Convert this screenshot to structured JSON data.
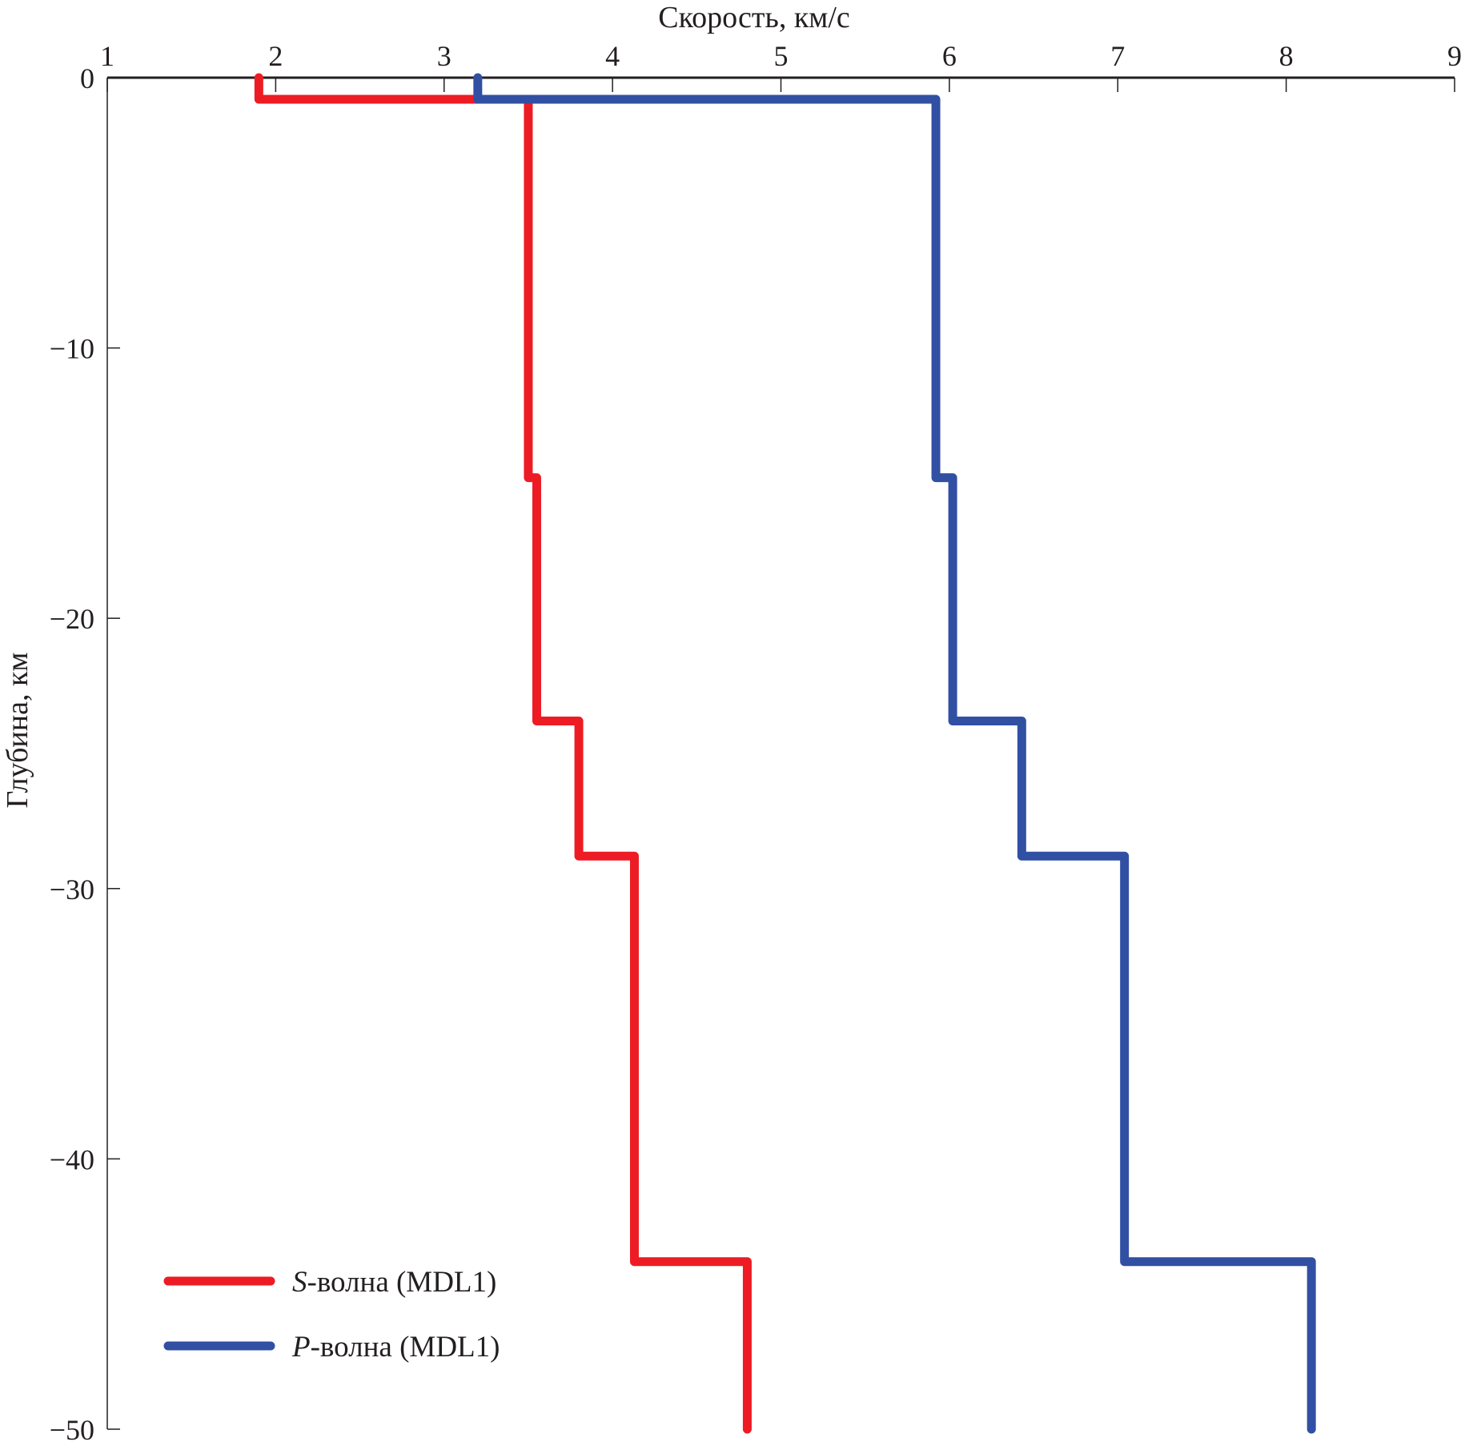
{
  "chart_data": {
    "type": "line",
    "xlabel": "Скорость, км/с",
    "ylabel": "Глубина, км",
    "xlim": [
      1,
      9
    ],
    "ylim": [
      -50,
      0
    ],
    "x_axis_position": "top",
    "xticks": [
      "1",
      "2",
      "3",
      "4",
      "5",
      "6",
      "7",
      "8",
      "9"
    ],
    "yticks": [
      "0",
      "−10",
      "−20",
      "−30",
      "−40",
      "−50"
    ],
    "ytick_values": [
      0,
      -10,
      -20,
      -30,
      -40,
      -50
    ],
    "grid": false,
    "legend_position": "bottom-left",
    "series": [
      {
        "name": "S-волна (MDL1)",
        "label_italic": "S",
        "label_rest": "-волна (MDL1)",
        "color": "#ed1c24",
        "layers": [
          {
            "velocity": 1.9,
            "top": 0,
            "bottom": -0.8
          },
          {
            "velocity": 3.5,
            "top": -0.8,
            "bottom": -14.8
          },
          {
            "velocity": 3.55,
            "top": -14.8,
            "bottom": -23.8
          },
          {
            "velocity": 3.8,
            "top": -23.8,
            "bottom": -28.8
          },
          {
            "velocity": 4.13,
            "top": -28.8,
            "bottom": -43.8
          },
          {
            "velocity": 4.8,
            "top": -43.8,
            "bottom": -50
          }
        ]
      },
      {
        "name": "P-волна (MDL1)",
        "label_italic": "P",
        "label_rest": "-волна (MDL1)",
        "color": "#3150a3",
        "layers": [
          {
            "velocity": 3.2,
            "top": 0,
            "bottom": -0.8
          },
          {
            "velocity": 5.92,
            "top": -0.8,
            "bottom": -14.8
          },
          {
            "velocity": 6.02,
            "top": -14.8,
            "bottom": -23.8
          },
          {
            "velocity": 6.43,
            "top": -23.8,
            "bottom": -28.8
          },
          {
            "velocity": 7.04,
            "top": -28.8,
            "bottom": -43.8
          },
          {
            "velocity": 8.15,
            "top": -43.8,
            "bottom": -50
          }
        ]
      }
    ]
  }
}
